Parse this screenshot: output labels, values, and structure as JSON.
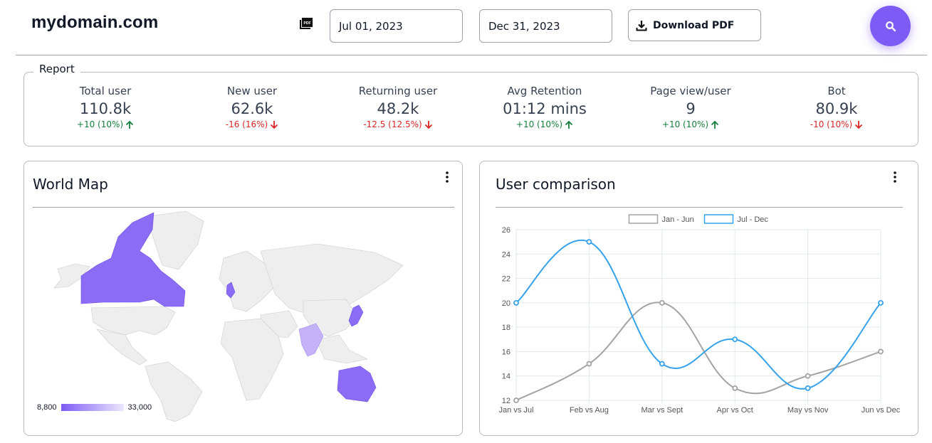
{
  "header": {
    "logo": "mydomain.com",
    "start_date": "Jul 01, 2023",
    "end_date": "Dec 31, 2023",
    "download_label": "Download PDF"
  },
  "report": {
    "legend": "Report",
    "stats": [
      {
        "label": "Total user",
        "value": "110.8k",
        "change": "+10 (10%)",
        "trend": "up"
      },
      {
        "label": "New user",
        "value": "62.6k",
        "change": "-16 (16%)",
        "trend": "down"
      },
      {
        "label": "Returning user",
        "value": "48.2k",
        "change": "-12.5 (12.5%)",
        "trend": "down"
      },
      {
        "label": "Avg Retention",
        "value": "01:12 mins",
        "change": "+10 (10%)",
        "trend": "up"
      },
      {
        "label": "Page view/user",
        "value": "9",
        "change": "+10 (10%)",
        "trend": "up"
      },
      {
        "label": "Bot",
        "value": "80.9k",
        "change": "-10 (10%)",
        "trend": "down"
      }
    ]
  },
  "map_card": {
    "title": "World Map",
    "scale_min": "8,800",
    "scale_max": "33,000",
    "highlight_color": "#8b6cf6",
    "light_color": "#c4b2f8"
  },
  "chart_card": {
    "title": "User comparison"
  },
  "chart_data": {
    "type": "line",
    "categories": [
      "Jan vs Jul",
      "Feb vs Aug",
      "Mar vs Sept",
      "Apr vs Oct",
      "May vs Nov",
      "Jun vs Dec"
    ],
    "series": [
      {
        "name": "Jan - Jun",
        "values": [
          12,
          15,
          20,
          13,
          14,
          16
        ],
        "color": "#a3a3a3"
      },
      {
        "name": "Jul - Dec",
        "values": [
          20,
          25,
          15,
          17,
          13,
          20
        ],
        "color": "#36a2eb"
      }
    ],
    "ylim": [
      12,
      26
    ],
    "yticks": [
      12,
      14,
      16,
      18,
      20,
      22,
      24,
      26
    ],
    "legend": "top-center",
    "grid": true
  }
}
